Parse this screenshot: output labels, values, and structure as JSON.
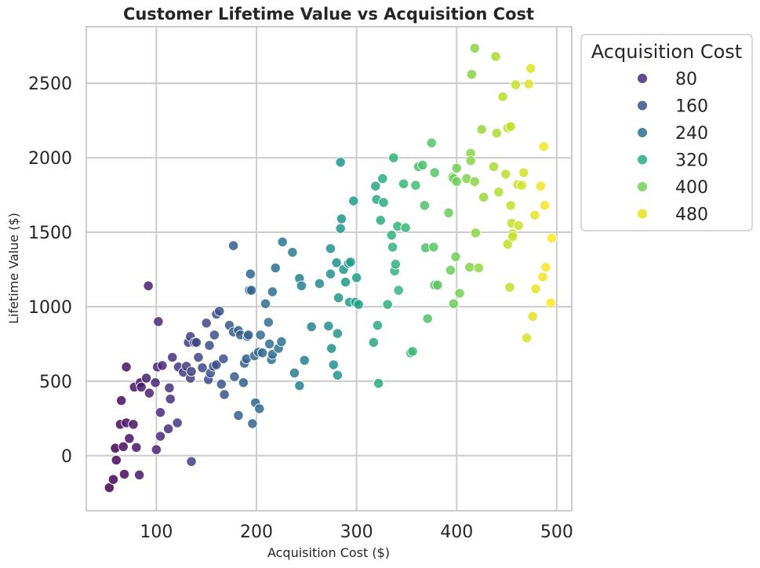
{
  "chart_data": {
    "type": "scatter",
    "title": "Customer Lifetime Value vs Acquisition Cost",
    "xlabel": "Acquisition Cost ($)",
    "ylabel": "Lifetime Value ($)",
    "xlim": [
      30,
      515
    ],
    "ylim": [
      -370,
      2880
    ],
    "xticks": [
      100,
      200,
      300,
      400,
      500
    ],
    "yticks": [
      0,
      500,
      1000,
      1500,
      2000,
      2500
    ],
    "grid": true,
    "colormap": "viridis",
    "hue": "Acquisition Cost",
    "legend": {
      "title": "Acquisition Cost",
      "placement": "outside-right",
      "entries": [
        {
          "label": "80",
          "color": "#472d7b"
        },
        {
          "label": "160",
          "color": "#3b528b"
        },
        {
          "label": "240",
          "color": "#2c728e"
        },
        {
          "label": "320",
          "color": "#28ae80"
        },
        {
          "label": "400",
          "color": "#73d056"
        },
        {
          "label": "480",
          "color": "#e3e418"
        }
      ]
    },
    "points": [
      [
        53,
        -215
      ],
      [
        57,
        -160
      ],
      [
        60,
        -30
      ],
      [
        59,
        50
      ],
      [
        64,
        210
      ],
      [
        65,
        370
      ],
      [
        67,
        60
      ],
      [
        68,
        -125
      ],
      [
        70,
        595
      ],
      [
        70,
        220
      ],
      [
        73,
        115
      ],
      [
        77,
        210
      ],
      [
        78,
        460
      ],
      [
        80,
        55
      ],
      [
        83,
        -130
      ],
      [
        84,
        490
      ],
      [
        85,
        460
      ],
      [
        90,
        520
      ],
      [
        92,
        1140
      ],
      [
        93,
        420
      ],
      [
        99,
        490
      ],
      [
        100,
        40
      ],
      [
        101,
        595
      ],
      [
        102,
        900
      ],
      [
        104,
        290
      ],
      [
        104,
        130
      ],
      [
        106,
        605
      ],
      [
        112,
        180
      ],
      [
        113,
        455
      ],
      [
        114,
        380
      ],
      [
        116,
        660
      ],
      [
        121,
        220
      ],
      [
        122,
        595
      ],
      [
        127,
        560
      ],
      [
        130,
        600
      ],
      [
        132,
        760
      ],
      [
        134,
        520
      ],
      [
        134,
        800
      ],
      [
        135,
        565
      ],
      [
        135,
        -40
      ],
      [
        138,
        760
      ],
      [
        140,
        760
      ],
      [
        142,
        660
      ],
      [
        146,
        590
      ],
      [
        150,
        890
      ],
      [
        152,
        510
      ],
      [
        153,
        740
      ],
      [
        154,
        555
      ],
      [
        157,
        600
      ],
      [
        158,
        810
      ],
      [
        160,
        950
      ],
      [
        160,
        610
      ],
      [
        163,
        970
      ],
      [
        165,
        480
      ],
      [
        167,
        650
      ],
      [
        168,
        410
      ],
      [
        173,
        875
      ],
      [
        177,
        1410
      ],
      [
        177,
        830
      ],
      [
        178,
        530
      ],
      [
        182,
        840
      ],
      [
        182,
        270
      ],
      [
        184,
        810
      ],
      [
        187,
        490
      ],
      [
        188,
        620
      ],
      [
        190,
        650
      ],
      [
        191,
        800
      ],
      [
        192,
        810
      ],
      [
        193,
        1110
      ],
      [
        194,
        1220
      ],
      [
        195,
        1110
      ],
      [
        196,
        215
      ],
      [
        198,
        670
      ],
      [
        199,
        355
      ],
      [
        202,
        695
      ],
      [
        203,
        315
      ],
      [
        204,
        810
      ],
      [
        206,
        690
      ],
      [
        209,
        1020
      ],
      [
        212,
        895
      ],
      [
        213,
        750
      ],
      [
        215,
        645
      ],
      [
        216,
        1100
      ],
      [
        216,
        680
      ],
      [
        219,
        1260
      ],
      [
        222,
        720
      ],
      [
        225,
        765
      ],
      [
        226,
        1435
      ],
      [
        236,
        1365
      ],
      [
        238,
        555
      ],
      [
        243,
        470
      ],
      [
        243,
        1190
      ],
      [
        245,
        1140
      ],
      [
        248,
        640
      ],
      [
        255,
        865
      ],
      [
        263,
        1155
      ],
      [
        272,
        870
      ],
      [
        274,
        1390
      ],
      [
        274,
        1220
      ],
      [
        275,
        720
      ],
      [
        277,
        610
      ],
      [
        280,
        1295
      ],
      [
        281,
        540
      ],
      [
        281,
        820
      ],
      [
        282,
        1060
      ],
      [
        284,
        1970
      ],
      [
        284,
        1525
      ],
      [
        285,
        1590
      ],
      [
        287,
        1250
      ],
      [
        289,
        1165
      ],
      [
        292,
        1290
      ],
      [
        293,
        1030
      ],
      [
        294,
        1300
      ],
      [
        297,
        1710
      ],
      [
        299,
        1030
      ],
      [
        300,
        1195
      ],
      [
        302,
        1015
      ],
      [
        317,
        760
      ],
      [
        319,
        1810
      ],
      [
        320,
        1720
      ],
      [
        321,
        875
      ],
      [
        322,
        485
      ],
      [
        324,
        1580
      ],
      [
        326,
        1860
      ],
      [
        327,
        1700
      ],
      [
        331,
        1015
      ],
      [
        335,
        1480
      ],
      [
        336,
        1400
      ],
      [
        337,
        2000
      ],
      [
        338,
        1240
      ],
      [
        339,
        1285
      ],
      [
        341,
        1540
      ],
      [
        342,
        1110
      ],
      [
        347,
        1825
      ],
      [
        349,
        1530
      ],
      [
        354,
        690
      ],
      [
        356,
        700
      ],
      [
        359,
        1815
      ],
      [
        362,
        1940
      ],
      [
        366,
        1950
      ],
      [
        368,
        1680
      ],
      [
        369,
        1395
      ],
      [
        371,
        920
      ],
      [
        375,
        2100
      ],
      [
        377,
        1400
      ],
      [
        378,
        1900
      ],
      [
        378,
        1145
      ],
      [
        381,
        1145
      ],
      [
        392,
        1630
      ],
      [
        394,
        1245
      ],
      [
        396,
        1870
      ],
      [
        397,
        1020
      ],
      [
        397,
        1860
      ],
      [
        399,
        1335
      ],
      [
        400,
        1930
      ],
      [
        400,
        1840
      ],
      [
        403,
        1090
      ],
      [
        410,
        1860
      ],
      [
        413,
        1265
      ],
      [
        414,
        2030
      ],
      [
        414,
        1980
      ],
      [
        415,
        2560
      ],
      [
        418,
        2735
      ],
      [
        418,
        1840
      ],
      [
        419,
        1495
      ],
      [
        422,
        1260
      ],
      [
        425,
        2190
      ],
      [
        427,
        1735
      ],
      [
        437,
        1940
      ],
      [
        439,
        2680
      ],
      [
        440,
        2165
      ],
      [
        442,
        1770
      ],
      [
        446,
        2410
      ],
      [
        449,
        1890
      ],
      [
        451,
        2200
      ],
      [
        451,
        1420
      ],
      [
        453,
        1130
      ],
      [
        454,
        2210
      ],
      [
        454,
        1680
      ],
      [
        455,
        1560
      ],
      [
        456,
        1490
      ],
      [
        456,
        1470
      ],
      [
        459,
        2490
      ],
      [
        461,
        1820
      ],
      [
        462,
        1545
      ],
      [
        465,
        1815
      ],
      [
        467,
        1900
      ],
      [
        470,
        790
      ],
      [
        472,
        2495
      ],
      [
        474,
        2600
      ],
      [
        476,
        935
      ],
      [
        478,
        1615
      ],
      [
        479,
        1120
      ],
      [
        484,
        1810
      ],
      [
        486,
        1200
      ],
      [
        487,
        2075
      ],
      [
        488,
        1680
      ],
      [
        489,
        1265
      ],
      [
        494,
        1025
      ],
      [
        495,
        1460
      ]
    ]
  }
}
